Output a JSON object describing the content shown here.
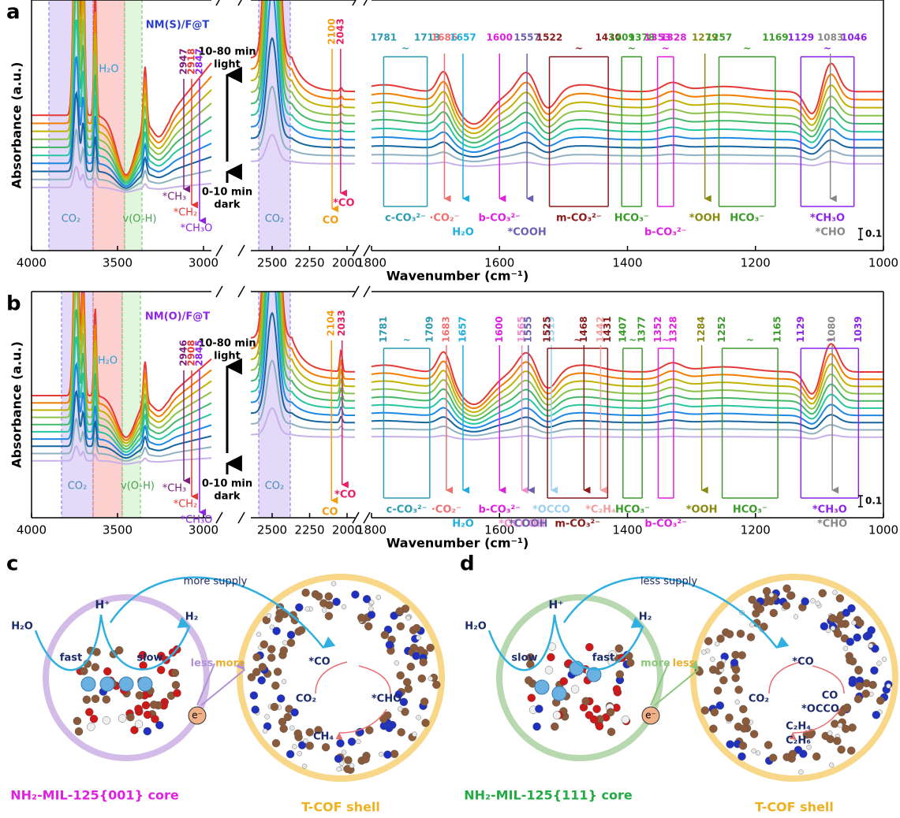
{
  "axis": {
    "y_label": "Absorbance (a.u.)",
    "x_label": "Wavenumber (cm⁻¹)",
    "ticks_left": [
      4000,
      3500,
      3000
    ],
    "ticks_mid": [
      2500,
      2250,
      2000
    ],
    "ticks_right": [
      1800,
      1600,
      1400,
      1200,
      1000
    ],
    "scale_bar": "0.1",
    "range_mark": "~"
  },
  "panels": [
    {
      "letter": "a",
      "sample": "NM(S)/F@T",
      "light": [
        "10-80 min",
        "light"
      ],
      "dark": [
        "0-10 min",
        "dark"
      ],
      "bands": [
        "CO₂",
        "H₂O",
        "v(O-H)",
        "CO₂"
      ],
      "left_peaks": [
        {
          "value": 2947,
          "label": "*CH₃",
          "color": "#7b1f7b"
        },
        {
          "value": 2918,
          "label": "*CH₂",
          "color": "#e53935"
        },
        {
          "value": 2847,
          "label": "*CH₃O",
          "color": "#8e24e8"
        }
      ],
      "mid_peaks": [
        {
          "value": 2100,
          "label": "CO",
          "color": "#f39c12"
        },
        {
          "value": 2043,
          "label": "*CO",
          "color": "#e91e63"
        }
      ],
      "right_peaks": [
        {
          "values": [
            1781,
            1713
          ],
          "label": "c-CO₃²⁻",
          "color": "#2a9bb0"
        },
        {
          "values": [
            1686
          ],
          "label": "·CO₂⁻",
          "color": "#f07070"
        },
        {
          "values": [
            1657
          ],
          "label": "H₂O",
          "color": "#1eaee0"
        },
        {
          "values": [
            1600
          ],
          "label": "b-CO₃²⁻",
          "color": "#e020e0"
        },
        {
          "values": [
            1557
          ],
          "label": "*COOH",
          "color": "#6a5fb0"
        },
        {
          "values": [
            1522,
            1430
          ],
          "label": "m-CO₃²⁻",
          "color": "#8b1a1a"
        },
        {
          "values": [
            1409,
            1378
          ],
          "label": "HCO₃⁻",
          "color": "#3a9a2a"
        },
        {
          "values": [
            1353,
            1328
          ],
          "label": "b-CO₃²⁻",
          "color": "#e020e0"
        },
        {
          "values": [
            1279
          ],
          "label": "*OOH",
          "color": "#8a8a10"
        },
        {
          "values": [
            1257,
            1169
          ],
          "label": "HCO₃⁻",
          "color": "#3a9a2a"
        },
        {
          "values": [
            1129,
            1046
          ],
          "label": "*CH₃O",
          "color": "#8e24e8"
        },
        {
          "values": [
            1083
          ],
          "label": "*CHO",
          "color": "#888888"
        }
      ]
    },
    {
      "letter": "b",
      "sample": "NM(O)/F@T",
      "light": [
        "10-80 min",
        "light"
      ],
      "dark": [
        "0-10 min",
        "dark"
      ],
      "bands": [
        "CO₂",
        "H₂O",
        "v(O-H)",
        "CO₂"
      ],
      "left_peaks": [
        {
          "value": 2946,
          "label": "*CH₃",
          "color": "#7b1f7b"
        },
        {
          "value": 2908,
          "label": "*CH₂",
          "color": "#e53935"
        },
        {
          "value": 2845,
          "label": "*CH₃O",
          "color": "#8e24e8"
        }
      ],
      "mid_peaks": [
        {
          "value": 2104,
          "label": "CO",
          "color": "#f39c12"
        },
        {
          "value": 2033,
          "label": "*CO",
          "color": "#e91e63"
        }
      ],
      "right_peaks": [
        {
          "values": [
            1781,
            1709
          ],
          "label": "c-CO₃²⁻",
          "color": "#2a9bb0"
        },
        {
          "values": [
            1683
          ],
          "label": "·CO₂⁻",
          "color": "#f07070"
        },
        {
          "values": [
            1657
          ],
          "label": "H₂O",
          "color": "#1eaee0"
        },
        {
          "values": [
            1600
          ],
          "label": "b-CO₃²⁻",
          "color": "#e020e0"
        },
        {
          "values": [
            1565
          ],
          "label": "*OCCOH",
          "color": "#f08cc8"
        },
        {
          "values": [
            1555
          ],
          "label": "*COOH",
          "color": "#6a5fb0"
        },
        {
          "values": [
            1519
          ],
          "label": "*OCCO",
          "color": "#9ad0f0"
        },
        {
          "values": [
            1525,
            1468,
            1431
          ],
          "label": "m-CO₃²⁻",
          "color": "#8b1a1a"
        },
        {
          "values": [
            1442
          ],
          "label": "*C₂H₄",
          "color": "#f0a0a0"
        },
        {
          "values": [
            1407,
            1377
          ],
          "label": "HCO₃⁻",
          "color": "#3a9a2a"
        },
        {
          "values": [
            1352,
            1328
          ],
          "label": "b-CO₃²⁻",
          "color": "#e020e0"
        },
        {
          "values": [
            1284
          ],
          "label": "*OOH",
          "color": "#8a8a10"
        },
        {
          "values": [
            1252,
            1165
          ],
          "label": "HCO₃⁻",
          "color": "#3a9a2a"
        },
        {
          "values": [
            1129,
            1039
          ],
          "label": "*CH₃O",
          "color": "#8e24e8"
        },
        {
          "values": [
            1080
          ],
          "label": "*CHO",
          "color": "#888888"
        }
      ]
    }
  ],
  "schemes": [
    {
      "letter": "c",
      "supply": "more supply",
      "h_plus": "H⁺",
      "h2o": "H₂O",
      "h2": "H₂",
      "left_rate": "fast",
      "right_rate": "slow",
      "core_flux": "less",
      "shell_flux": "more",
      "electron": "e⁻",
      "products": [
        "*CO",
        "CO₂",
        "*CHO",
        "CH₄"
      ],
      "core": "NH₂-MIL-125{001} core",
      "shell": "T-COF shell"
    },
    {
      "letter": "d",
      "supply": "less supply",
      "h_plus": "H⁺",
      "h2o": "H₂O",
      "h2": "H₂",
      "left_rate": "slow",
      "right_rate": "fast",
      "core_flux": "more",
      "shell_flux": "less",
      "electron": "e⁻",
      "products": [
        "*CO",
        "CO₂",
        "CO",
        "*OCCO",
        "C₂H₄",
        "C₂H₆"
      ],
      "core": "NH₂-MIL-125{111} core",
      "shell": "T-COF shell"
    }
  ]
}
